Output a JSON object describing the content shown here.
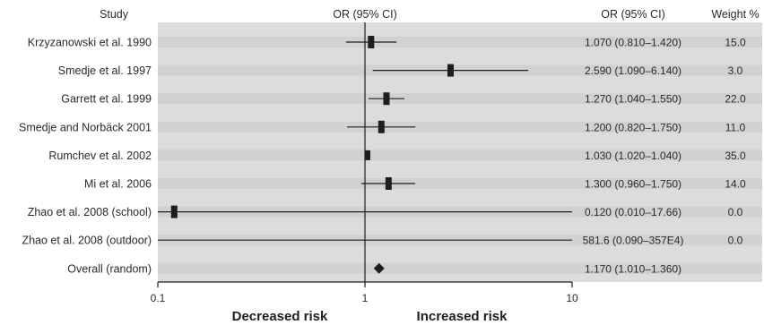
{
  "headers": {
    "study": "Study",
    "plot": "OR (95% CI)",
    "or_ci": "OR (95% CI)",
    "weight": "Weight %"
  },
  "chart_data": {
    "type": "forest",
    "x_scale": "log",
    "xlim": [
      0.1,
      10
    ],
    "x_ticks": [
      0.1,
      1,
      10
    ],
    "x_tick_labels": [
      "0.1",
      "1",
      "10"
    ],
    "reference_line": 1,
    "left_label": "Decreased risk",
    "right_label": "Increased risk",
    "studies": [
      {
        "name": "Krzyzanowski et al. 1990",
        "or": 1.07,
        "lo": 0.81,
        "hi": 1.42,
        "or_ci_text": "1.070 (0.810–1.420)",
        "weight": "15.0",
        "weight_value": 15.0
      },
      {
        "name": "Smedje et al. 1997",
        "or": 2.59,
        "lo": 1.09,
        "hi": 6.14,
        "or_ci_text": "2.590 (1.090–6.140)",
        "weight": "3.0",
        "weight_value": 3.0
      },
      {
        "name": "Garrett et al. 1999",
        "or": 1.27,
        "lo": 1.04,
        "hi": 1.55,
        "or_ci_text": "1.270 (1.040–1.550)",
        "weight": "22.0",
        "weight_value": 22.0
      },
      {
        "name": "Smedje and Norbäck 2001",
        "or": 1.2,
        "lo": 0.82,
        "hi": 1.75,
        "or_ci_text": "1.200 (0.820–1.750)",
        "weight": "11.0",
        "weight_value": 11.0
      },
      {
        "name": "Rumchev et al. 2002",
        "or": 1.03,
        "lo": 1.02,
        "hi": 1.04,
        "or_ci_text": "1.030 (1.020–1.040)",
        "weight": "35.0",
        "weight_value": 35.0
      },
      {
        "name": "Mi et al. 2006",
        "or": 1.3,
        "lo": 0.96,
        "hi": 1.75,
        "or_ci_text": "1.300 (0.960–1.750)",
        "weight": "14.0",
        "weight_value": 14.0
      },
      {
        "name": "Zhao et al. 2008 (school)",
        "or": 0.12,
        "lo": 0.01,
        "hi": 17.66,
        "or_ci_text": "0.120 (0.010–17.66)",
        "weight": "0.0",
        "weight_value": 0.0
      },
      {
        "name": "Zhao et al. 2008 (outdoor)",
        "or": 581.6,
        "lo": 0.09,
        "hi": 3570000,
        "or_ci_text": "581.6 (0.090–357E4)",
        "weight": "0.0",
        "weight_value": 0.0
      }
    ],
    "overall": {
      "name": "Overall (random)",
      "or": 1.17,
      "lo": 1.01,
      "hi": 1.36,
      "or_ci_text": "1.170 (1.010–1.360)"
    }
  },
  "colors": {
    "plot_bg": "#dcdcdc",
    "row_band": "#c9c9c9",
    "line": "#1e1e1e",
    "marker": "#1e1e1e"
  }
}
